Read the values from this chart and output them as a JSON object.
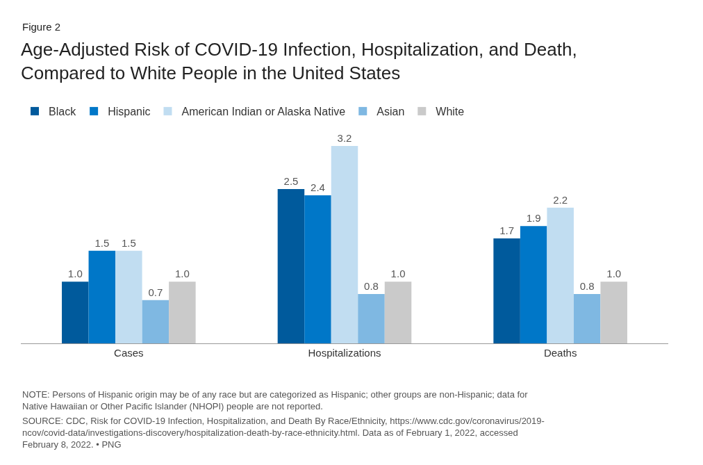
{
  "chart_data": {
    "type": "bar",
    "title": "Age-Adjusted Risk of COVID-19 Infection, Hospitalization, and Death, Compared to White People in the United States",
    "categories": [
      "Cases",
      "Hospitalizations",
      "Deaths"
    ],
    "series": [
      {
        "name": "Black",
        "color": "#005a9c",
        "values": [
          1.0,
          2.5,
          1.7
        ],
        "value_labels": [
          "1.0",
          "2.5",
          "1.7"
        ]
      },
      {
        "name": "Hispanic",
        "color": "#0077c8",
        "values": [
          1.5,
          2.4,
          1.9
        ],
        "value_labels": [
          "1.5",
          "2.4",
          "1.9"
        ]
      },
      {
        "name": "American Indian or Alaska Native",
        "color": "#c1ddf1",
        "values": [
          1.5,
          3.2,
          2.2
        ],
        "value_labels": [
          "1.5",
          "3.2",
          "2.2"
        ]
      },
      {
        "name": "Asian",
        "color": "#7fb8e2",
        "values": [
          0.7,
          0.8,
          0.8
        ],
        "value_labels": [
          "0.7",
          "0.8",
          "0.8"
        ]
      },
      {
        "name": "White",
        "color": "#cacaca",
        "values": [
          1.0,
          1.0,
          1.0
        ],
        "value_labels": [
          "1.0",
          "1.0",
          "1.0"
        ]
      }
    ],
    "legend": "top left",
    "grid": false,
    "annotations": [
      "Figure 2",
      "NOTE: Persons of Hispanic origin may be of any race but are categorized as Hispanic; other groups are non-Hispanic; data for Native Hawaiian or Other Pacific Islander (NHOPI) people are not reported.",
      "SOURCE: CDC, Risk for COVID-19 Infection, Hospitalization, and Death By Race/Ethnicity, https://www.cdc.gov/coronavirus/2019-ncov/covid-data/investigations-discovery/hospitalization-death-by-race-ethnicity.html. Data as of February 1, 2022, accessed February 8, 2022. • PNG"
    ]
  }
}
